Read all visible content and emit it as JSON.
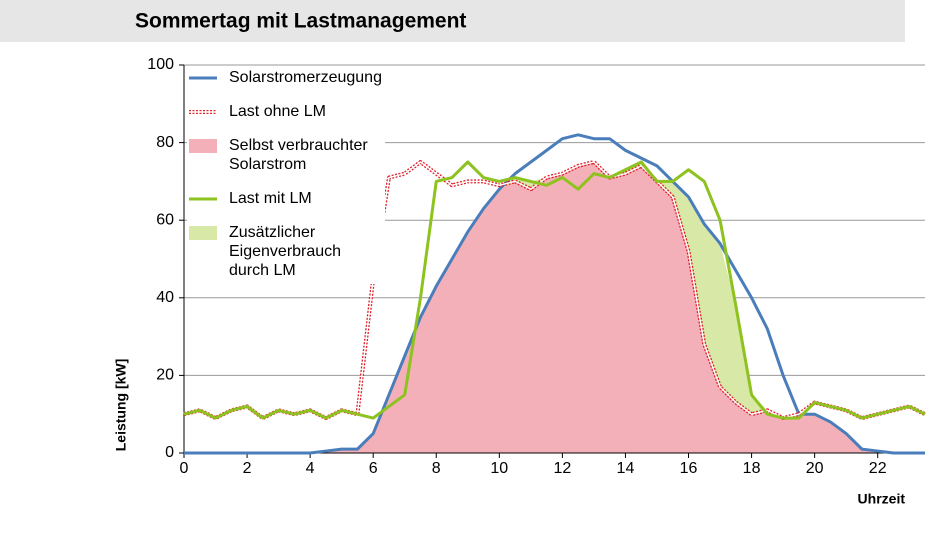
{
  "chart_data": {
    "type": "line",
    "title": "Sommertag mit Lastmanagement",
    "y_label": "Leistung [kW]",
    "x_label": "Uhrzeit",
    "x": [
      0,
      0.5,
      1,
      1.5,
      2,
      2.5,
      3,
      3.5,
      4,
      4.5,
      5,
      5.5,
      6,
      6.5,
      7,
      7.5,
      8,
      8.5,
      9,
      9.5,
      10,
      10.5,
      11,
      11.5,
      12,
      12.5,
      13,
      13.5,
      14,
      14.5,
      15,
      15.5,
      16,
      16.5,
      17,
      17.5,
      18,
      18.5,
      19,
      19.5,
      20,
      20.5,
      21,
      21.5,
      22,
      22.5,
      23,
      23.5
    ],
    "series": [
      {
        "name": "Solarstromerzeugung",
        "type": "line",
        "color": "#4a7ebb",
        "values": [
          0,
          0,
          0,
          0,
          0,
          0,
          0,
          0,
          0,
          0.5,
          1,
          1,
          5,
          15,
          25,
          35,
          43,
          50,
          57,
          63,
          68,
          72,
          75,
          78,
          81,
          82,
          81,
          81,
          78,
          76,
          74,
          70,
          66,
          59,
          54,
          47,
          40,
          32,
          20,
          10,
          10,
          8,
          5,
          1,
          0.5,
          0,
          0,
          0
        ]
      },
      {
        "name": "Last ohne LM",
        "type": "line",
        "color": "#e0202a",
        "dashed": true,
        "values": [
          10,
          11,
          9,
          11,
          12,
          9,
          11,
          10,
          11,
          9,
          11,
          10,
          45,
          71,
          72,
          75,
          72,
          69,
          70,
          70,
          69,
          70,
          68,
          71,
          72,
          74,
          75,
          71,
          72,
          74,
          70,
          66,
          52,
          28,
          17,
          13,
          10,
          11,
          9,
          10,
          13,
          12,
          11,
          9,
          10,
          11,
          12,
          10
        ]
      },
      {
        "name": "Selbst verbrauchter Solarstrom",
        "type": "area",
        "color": "#f4b0b8",
        "values": [
          0,
          0,
          0,
          0,
          0,
          0,
          0,
          0,
          0,
          0.5,
          1,
          1,
          5,
          15,
          25,
          35,
          43,
          50,
          57,
          63,
          68,
          70,
          68,
          71,
          72,
          74,
          75,
          71,
          72,
          74,
          70,
          66,
          52,
          28,
          17,
          13,
          10,
          11,
          9,
          10,
          10,
          8,
          5,
          1,
          0.5,
          0,
          0,
          0
        ]
      },
      {
        "name": "Last mit LM",
        "type": "line",
        "color": "#8dc21f",
        "values": [
          10,
          11,
          9,
          11,
          12,
          9,
          11,
          10,
          11,
          9,
          11,
          10,
          9,
          12,
          15,
          40,
          70,
          71,
          75,
          71,
          70,
          71,
          70,
          69,
          71,
          68,
          72,
          71,
          73,
          75,
          70,
          70,
          73,
          70,
          60,
          38,
          15,
          10,
          9,
          9,
          13,
          12,
          11,
          9,
          10,
          11,
          12,
          10
        ]
      },
      {
        "name": "Zusätzlicher Eigenverbrauch durch LM",
        "type": "area",
        "color": "#d8e8a6",
        "values": [
          0,
          0,
          0,
          0,
          0,
          0,
          0,
          0,
          0,
          0,
          0,
          0,
          0,
          0,
          0,
          0,
          0,
          0,
          0,
          0,
          0,
          1,
          2,
          0,
          0,
          0,
          0,
          0,
          1,
          1,
          0,
          4,
          14,
          31,
          37,
          25,
          5,
          0,
          0,
          0,
          0,
          0,
          0,
          0,
          0,
          0,
          0,
          0
        ]
      }
    ],
    "xlim": [
      0,
      23.5
    ],
    "ylim": [
      0,
      100
    ],
    "xticks": [
      0,
      2,
      4,
      6,
      8,
      10,
      12,
      14,
      16,
      18,
      20,
      22
    ],
    "yticks": [
      0,
      20,
      40,
      60,
      80,
      100
    ],
    "grid": true,
    "legend": "top-left"
  }
}
